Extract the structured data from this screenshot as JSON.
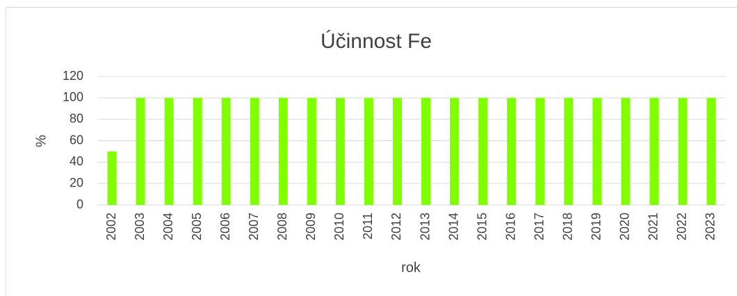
{
  "chart_data": {
    "type": "bar",
    "title": "Účinnost Fe",
    "x_label": "rok",
    "y_label": "%",
    "categories": [
      "2002",
      "2003",
      "2004",
      "2005",
      "2006",
      "2007",
      "2008",
      "2009",
      "2010",
      "2011",
      "2012",
      "2013",
      "2014",
      "2015",
      "2016",
      "2017",
      "2018",
      "2019",
      "2020",
      "2021",
      "2022",
      "2023"
    ],
    "values": [
      50,
      100,
      100,
      100,
      100,
      100,
      100,
      100,
      100,
      100,
      100,
      100,
      100,
      100,
      100,
      100,
      100,
      100,
      100,
      100,
      100,
      100
    ],
    "color": "#80ff00",
    "ylim": [
      0,
      120
    ],
    "yticks": [
      0,
      20,
      40,
      60,
      80,
      100,
      120
    ],
    "grid": true
  }
}
